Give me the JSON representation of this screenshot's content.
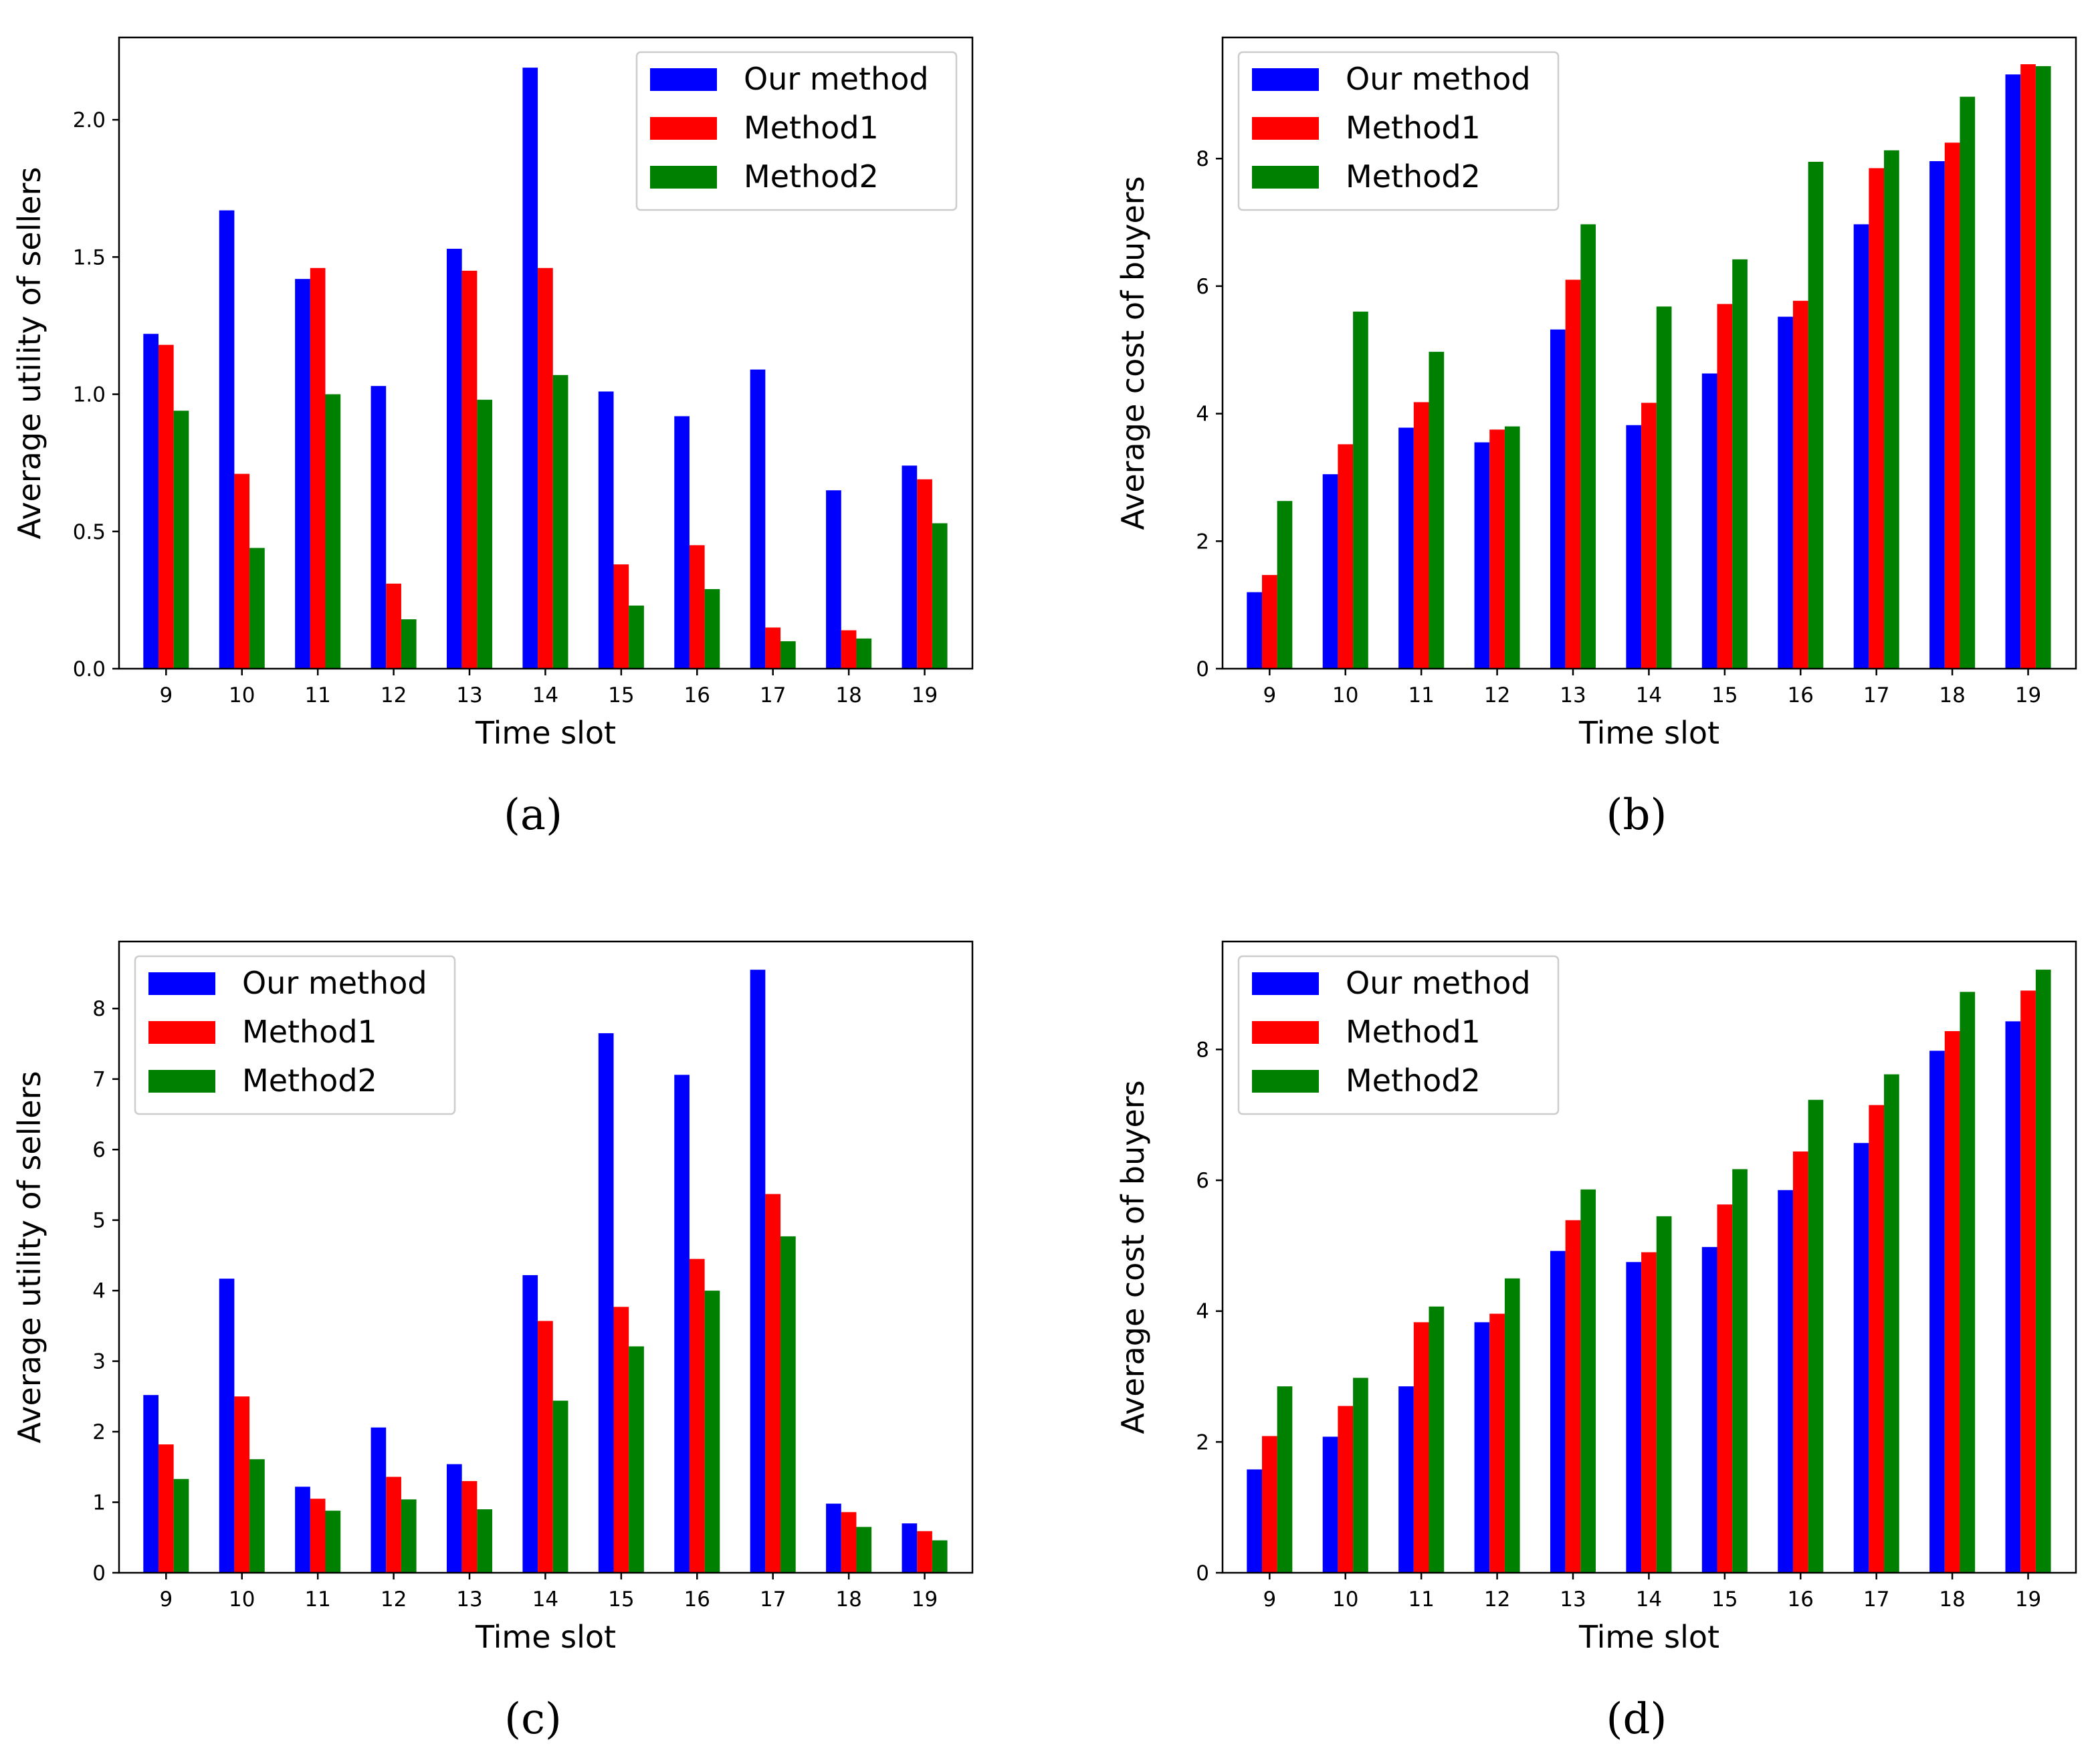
{
  "colors": {
    "Our method": "#0000ff",
    "Method1": "#ff0000",
    "Method2": "#008000"
  },
  "chart_data": [
    {
      "type": "bar",
      "panel_label": "(a)",
      "categories": [
        "9",
        "10",
        "11",
        "12",
        "13",
        "14",
        "15",
        "16",
        "17",
        "18",
        "19"
      ],
      "series": [
        {
          "name": "Our method",
          "values": [
            1.22,
            1.67,
            1.42,
            1.03,
            1.53,
            2.19,
            1.01,
            0.92,
            1.09,
            0.65,
            0.74
          ]
        },
        {
          "name": "Method1",
          "values": [
            1.18,
            0.71,
            1.46,
            0.31,
            1.45,
            1.46,
            0.38,
            0.45,
            0.15,
            0.14,
            0.69
          ]
        },
        {
          "name": "Method2",
          "values": [
            0.94,
            0.44,
            1.0,
            0.18,
            0.98,
            1.07,
            0.23,
            0.29,
            0.1,
            0.11,
            0.53
          ]
        }
      ],
      "yticks": [
        "0.0",
        "0.5",
        "1.0",
        "1.5",
        "2.0"
      ],
      "ytick_values": [
        0,
        0.5,
        1.0,
        1.5,
        2.0
      ],
      "ylim": [
        0,
        2.3
      ],
      "xlabel": "Time slot",
      "ylabel": "Average utility of sellers",
      "legend": "top-right"
    },
    {
      "type": "bar",
      "panel_label": "(b)",
      "categories": [
        "9",
        "10",
        "11",
        "12",
        "13",
        "14",
        "15",
        "16",
        "17",
        "18",
        "19"
      ],
      "series": [
        {
          "name": "Our method",
          "values": [
            1.2,
            3.05,
            3.78,
            3.55,
            5.32,
            3.82,
            4.63,
            5.52,
            6.97,
            7.96,
            9.32
          ]
        },
        {
          "name": "Method1",
          "values": [
            1.47,
            3.52,
            4.18,
            3.75,
            6.1,
            4.17,
            5.72,
            5.77,
            7.85,
            8.25,
            9.48
          ]
        },
        {
          "name": "Method2",
          "values": [
            2.63,
            5.6,
            4.97,
            3.8,
            6.97,
            5.68,
            6.42,
            7.95,
            8.13,
            8.97,
            9.45
          ]
        }
      ],
      "yticks": [
        "0",
        "2",
        "4",
        "6",
        "8"
      ],
      "ytick_values": [
        0,
        2,
        4,
        6,
        8
      ],
      "ylim": [
        0,
        9.9
      ],
      "xlabel": "Time slot",
      "ylabel": "Average cost of buyers",
      "legend": "top-left"
    },
    {
      "type": "bar",
      "panel_label": "(c)",
      "categories": [
        "9",
        "10",
        "11",
        "12",
        "13",
        "14",
        "15",
        "16",
        "17",
        "18",
        "19"
      ],
      "series": [
        {
          "name": "Our method",
          "values": [
            2.52,
            4.17,
            1.22,
            2.06,
            1.54,
            4.22,
            7.65,
            7.06,
            8.55,
            0.98,
            0.7
          ]
        },
        {
          "name": "Method1",
          "values": [
            1.82,
            2.5,
            1.05,
            1.36,
            1.3,
            3.57,
            3.77,
            4.45,
            5.37,
            0.86,
            0.59
          ]
        },
        {
          "name": "Method2",
          "values": [
            1.33,
            1.61,
            0.88,
            1.04,
            0.9,
            2.44,
            3.21,
            4.0,
            4.77,
            0.65,
            0.46
          ]
        }
      ],
      "yticks": [
        "0",
        "1",
        "2",
        "3",
        "4",
        "5",
        "6",
        "7",
        "8"
      ],
      "ytick_values": [
        0,
        1,
        2,
        3,
        4,
        5,
        6,
        7,
        8
      ],
      "ylim": [
        0,
        8.95
      ],
      "xlabel": "Time slot",
      "ylabel": "Average utility of sellers",
      "legend": "top-left"
    },
    {
      "type": "bar",
      "panel_label": "(d)",
      "categories": [
        "9",
        "10",
        "11",
        "12",
        "13",
        "14",
        "15",
        "16",
        "17",
        "18",
        "19"
      ],
      "series": [
        {
          "name": "Our method",
          "values": [
            1.58,
            2.08,
            2.85,
            3.83,
            4.92,
            4.75,
            4.98,
            5.85,
            6.57,
            7.98,
            8.43
          ]
        },
        {
          "name": "Method1",
          "values": [
            2.09,
            2.55,
            3.83,
            3.96,
            5.39,
            4.9,
            5.63,
            6.44,
            7.15,
            8.28,
            8.9
          ]
        },
        {
          "name": "Method2",
          "values": [
            2.85,
            2.98,
            4.07,
            4.5,
            5.86,
            5.45,
            6.17,
            7.23,
            7.62,
            8.88,
            9.22
          ]
        }
      ],
      "yticks": [
        "0",
        "2",
        "4",
        "6",
        "8"
      ],
      "ytick_values": [
        0,
        2,
        4,
        6,
        8
      ],
      "ylim": [
        0,
        9.65
      ],
      "xlabel": "Time slot",
      "ylabel": "Average cost of buyers",
      "legend": "top-left"
    }
  ]
}
